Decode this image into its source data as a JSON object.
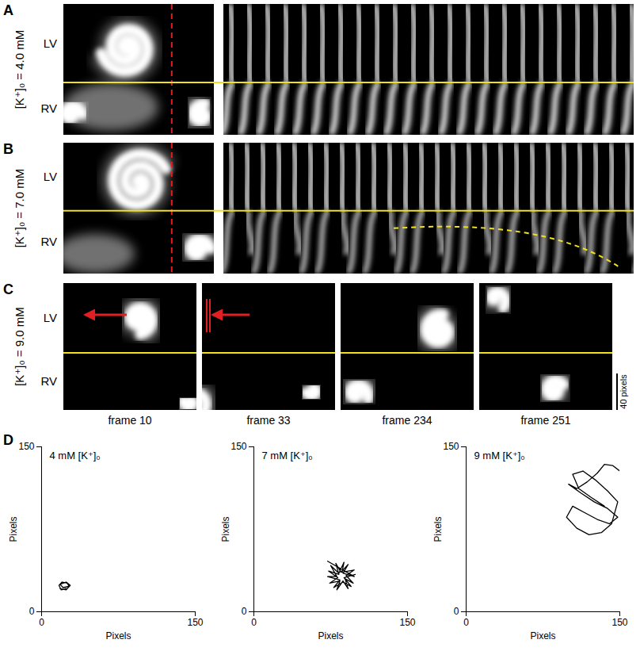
{
  "rows": [
    {
      "letter": "A",
      "condition": "[K⁺]₀ = 4.0 mM",
      "upper": "LV",
      "lower": "RV"
    },
    {
      "letter": "B",
      "condition": "[K⁺]₀ = 7.0 mM",
      "upper": "LV",
      "lower": "RV"
    },
    {
      "letter": "C",
      "condition": "[K⁺]₀ = 9.0 mM",
      "upper": "LV",
      "lower": "RV",
      "frames": [
        "frame 10",
        "frame 33",
        "frame 234",
        "frame 251"
      ],
      "scale_bar": "40 pixels"
    }
  ],
  "panel_d": {
    "letter": "D"
  },
  "chart_data": [
    {
      "type": "line",
      "title": "4 mM [K⁺]₀",
      "xlabel": "Pixels",
      "ylabel": "Pixels",
      "xlim": [
        0,
        150
      ],
      "ylim": [
        0,
        150
      ],
      "xticks": [
        0,
        150
      ],
      "yticks": [
        0,
        150
      ],
      "color": "#000000",
      "x": [
        18,
        24,
        27,
        25,
        20,
        17,
        19,
        25,
        28,
        24,
        18,
        21,
        26,
        23
      ],
      "values": [
        21,
        20,
        23,
        26,
        27,
        24,
        20,
        21,
        24,
        27,
        25,
        22,
        23,
        22
      ]
    },
    {
      "type": "line",
      "title": "7 mM [K⁺]₀",
      "xlabel": "Pixels",
      "ylabel": "Pixels",
      "xlim": [
        0,
        150
      ],
      "ylim": [
        0,
        150
      ],
      "xticks": [
        0,
        150
      ],
      "yticks": [
        0,
        150
      ],
      "color": "#000000",
      "x": [
        72,
        98,
        87,
        92,
        85,
        80,
        83,
        73,
        82,
        74,
        84,
        81,
        87,
        92,
        89,
        97,
        90,
        98,
        86,
        88,
        83,
        75,
        81,
        72,
        84,
        78,
        87,
        95,
        88,
        99
      ],
      "values": [
        46,
        32,
        35,
        43,
        36,
        44,
        34,
        37,
        31,
        26,
        28,
        20,
        28,
        21,
        30,
        26,
        33,
        38,
        36,
        45,
        35,
        42,
        32,
        32,
        29,
        22,
        27,
        23,
        31,
        34
      ]
    },
    {
      "type": "line",
      "title": "9 mM [K⁺]₀",
      "xlabel": "Pixels",
      "ylabel": "Pixels",
      "xlim": [
        0,
        150
      ],
      "ylim": [
        0,
        150
      ],
      "xticks": [
        0,
        150
      ],
      "yticks": [
        0,
        150
      ],
      "color": "#000000",
      "x": [
        150,
        143,
        135,
        128,
        118,
        108,
        100,
        112,
        125,
        138,
        148,
        140,
        128,
        116,
        104,
        98,
        108,
        120,
        132,
        142,
        148,
        138,
        126,
        114,
        104,
        110,
        122,
        135
      ],
      "values": [
        128,
        133,
        134,
        126,
        118,
        112,
        116,
        108,
        100,
        94,
        86,
        80,
        84,
        90,
        96,
        86,
        76,
        70,
        72,
        80,
        100,
        110,
        120,
        128,
        125,
        112,
        104,
        96
      ]
    }
  ]
}
